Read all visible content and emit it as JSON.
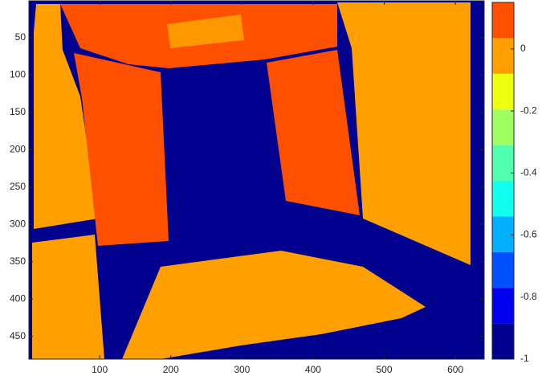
{
  "chart_data": {
    "type": "image",
    "xlim": [
      0.5,
      640.5
    ],
    "xticks": [
      100,
      200,
      300,
      400,
      500,
      600
    ],
    "ylim": [
      0.5,
      480.5
    ],
    "yticks": [
      50,
      100,
      150,
      200,
      250,
      300,
      350,
      400,
      450
    ],
    "colorbar": {
      "clim": [
        -1,
        0.15
      ],
      "ticks": [
        0,
        -0.2,
        -0.4,
        -0.6,
        -0.8,
        -1
      ],
      "colors": [
        "#00008f",
        "#0000ef",
        "#0050ff",
        "#00afff",
        "#10ffef",
        "#50ffaf",
        "#9fff60",
        "#efff10",
        "#ffa000",
        "#ff5000"
      ]
    }
  }
}
